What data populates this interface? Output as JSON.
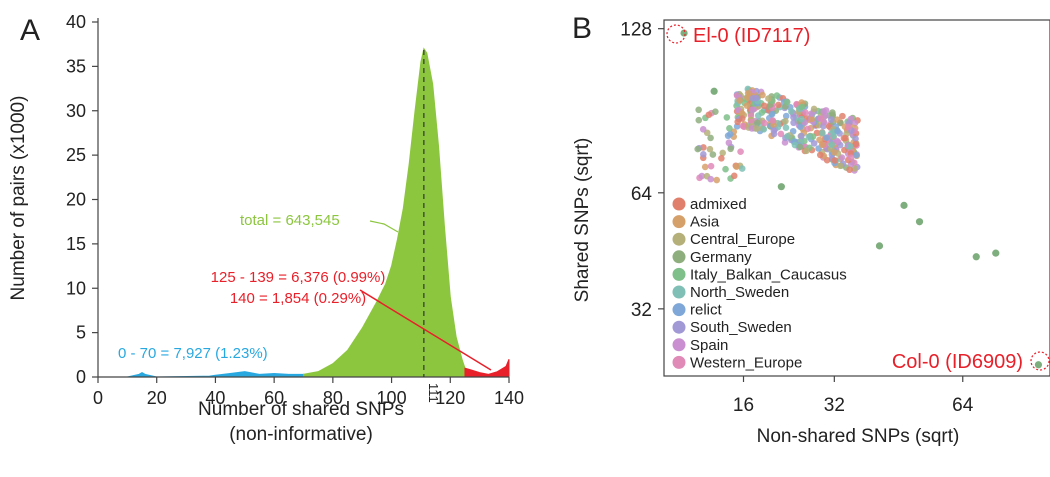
{
  "panel_a": {
    "label": "A",
    "ylabel": "Number of pairs (x1000)",
    "xlabel_line1": "Number of shared SNPs",
    "xlabel_line2": "(non-informative)",
    "marker_label": "111",
    "annotation_total": "total = 643,545",
    "annotation_red_1": "125 - 139  = 6,376 (0.99%)",
    "annotation_red_2": "140 = 1,854 (0.29%)",
    "annotation_blue": "0 - 70  = 7,927 (1.23%)"
  },
  "panel_b": {
    "label": "B",
    "ylabel": "Shared SNPs (sqrt)",
    "xlabel": "Non-shared SNPs (sqrt)",
    "callout_top": "El-0 (ID7117)",
    "callout_bottom": "Col-0 (ID6909)",
    "legend": [
      {
        "name": "admixed",
        "color": "#e0806c"
      },
      {
        "name": "Asia",
        "color": "#d6a06a"
      },
      {
        "name": "Central_Europe",
        "color": "#b5b07a"
      },
      {
        "name": "Germany",
        "color": "#8fae7e"
      },
      {
        "name": "Italy_Balkan_Caucasus",
        "color": "#7fbf8a"
      },
      {
        "name": "North_Sweden",
        "color": "#7fbfb5"
      },
      {
        "name": "relict",
        "color": "#7fa8d8"
      },
      {
        "name": "South_Sweden",
        "color": "#a199d6"
      },
      {
        "name": "Spain",
        "color": "#c98fd0"
      },
      {
        "name": "Western_Europe",
        "color": "#e08ab8"
      }
    ]
  },
  "colors": {
    "green": "#8cc63f",
    "red": "#e8202a",
    "blue": "#29a8e0",
    "callout_red": "#e8202a",
    "point_green": "#7fae7e"
  },
  "chart_data": [
    {
      "type": "area",
      "xlabel": "Number of shared SNPs\n(non-informative)",
      "ylabel": "Number of pairs (x1000)",
      "xlim": [
        0,
        140
      ],
      "ylim": [
        0,
        40
      ],
      "xticks": [
        0,
        20,
        40,
        60,
        80,
        100,
        120,
        140
      ],
      "yticks": [
        0,
        5,
        10,
        15,
        20,
        25,
        30,
        35,
        40
      ],
      "series": [
        {
          "name": "0 - 70",
          "color": "#29a8e0",
          "x": [
            0,
            10,
            14,
            15,
            16,
            20,
            38,
            40,
            45,
            50,
            55,
            60,
            65,
            70
          ],
          "y": [
            0,
            0,
            0.3,
            0.5,
            0.3,
            0,
            0.1,
            0.2,
            0.4,
            0.6,
            0.3,
            0.4,
            0.3,
            0.3
          ]
        },
        {
          "name": "total",
          "color": "#8cc63f",
          "x": [
            70,
            75,
            80,
            85,
            90,
            95,
            98,
            100,
            102,
            104,
            106,
            108,
            110,
            111,
            112,
            114,
            116,
            118,
            120,
            122,
            124,
            125
          ],
          "y": [
            0.3,
            0.6,
            1.5,
            3,
            5.5,
            8.5,
            10.5,
            12.5,
            15.5,
            19,
            24,
            30,
            35.5,
            37,
            36.5,
            33,
            26,
            17,
            9,
            4.5,
            2,
            1
          ]
        },
        {
          "name": "125 - 139",
          "color": "#e8202a",
          "x": [
            125,
            127,
            130,
            133,
            136,
            139
          ],
          "y": [
            1,
            0.8,
            0.5,
            0.3,
            0.6,
            1.2
          ]
        },
        {
          "name": "140",
          "color": "#e8202a",
          "x": [
            139,
            140
          ],
          "y": [
            1.2,
            2
          ]
        }
      ]
    },
    {
      "type": "scatter",
      "xlabel": "Non-shared SNPs (sqrt)",
      "ylabel": "Shared SNPs (sqrt)",
      "x_scale": "sqrt",
      "y_scale": "sqrt",
      "xlim": [
        6.5,
        92
      ],
      "ylim": [
        18.5,
        132
      ],
      "xticks": [
        16,
        32,
        64
      ],
      "yticks": [
        32,
        64,
        128
      ],
      "cluster": {
        "x_range": [
          9,
          38
        ],
        "y_range": [
          63,
          103
        ],
        "groups": [
          "admixed",
          "Asia",
          "Central_Europe",
          "Germany",
          "Italy_Balkan_Caucasus",
          "North_Sweden",
          "relict",
          "South_Sweden",
          "Spain",
          "Western_Europe"
        ]
      },
      "outliers": [
        {
          "x": 8.5,
          "y": 126,
          "label": "El-0 (ID7117)"
        },
        {
          "x": 88,
          "y": 20.5,
          "label": "Col-0 (ID6909)"
        },
        {
          "x": 48,
          "y": 60
        },
        {
          "x": 52,
          "y": 55
        },
        {
          "x": 42,
          "y": 48
        },
        {
          "x": 68,
          "y": 45
        },
        {
          "x": 74,
          "y": 46
        },
        {
          "x": 22,
          "y": 66
        },
        {
          "x": 12,
          "y": 101
        }
      ]
    }
  ]
}
